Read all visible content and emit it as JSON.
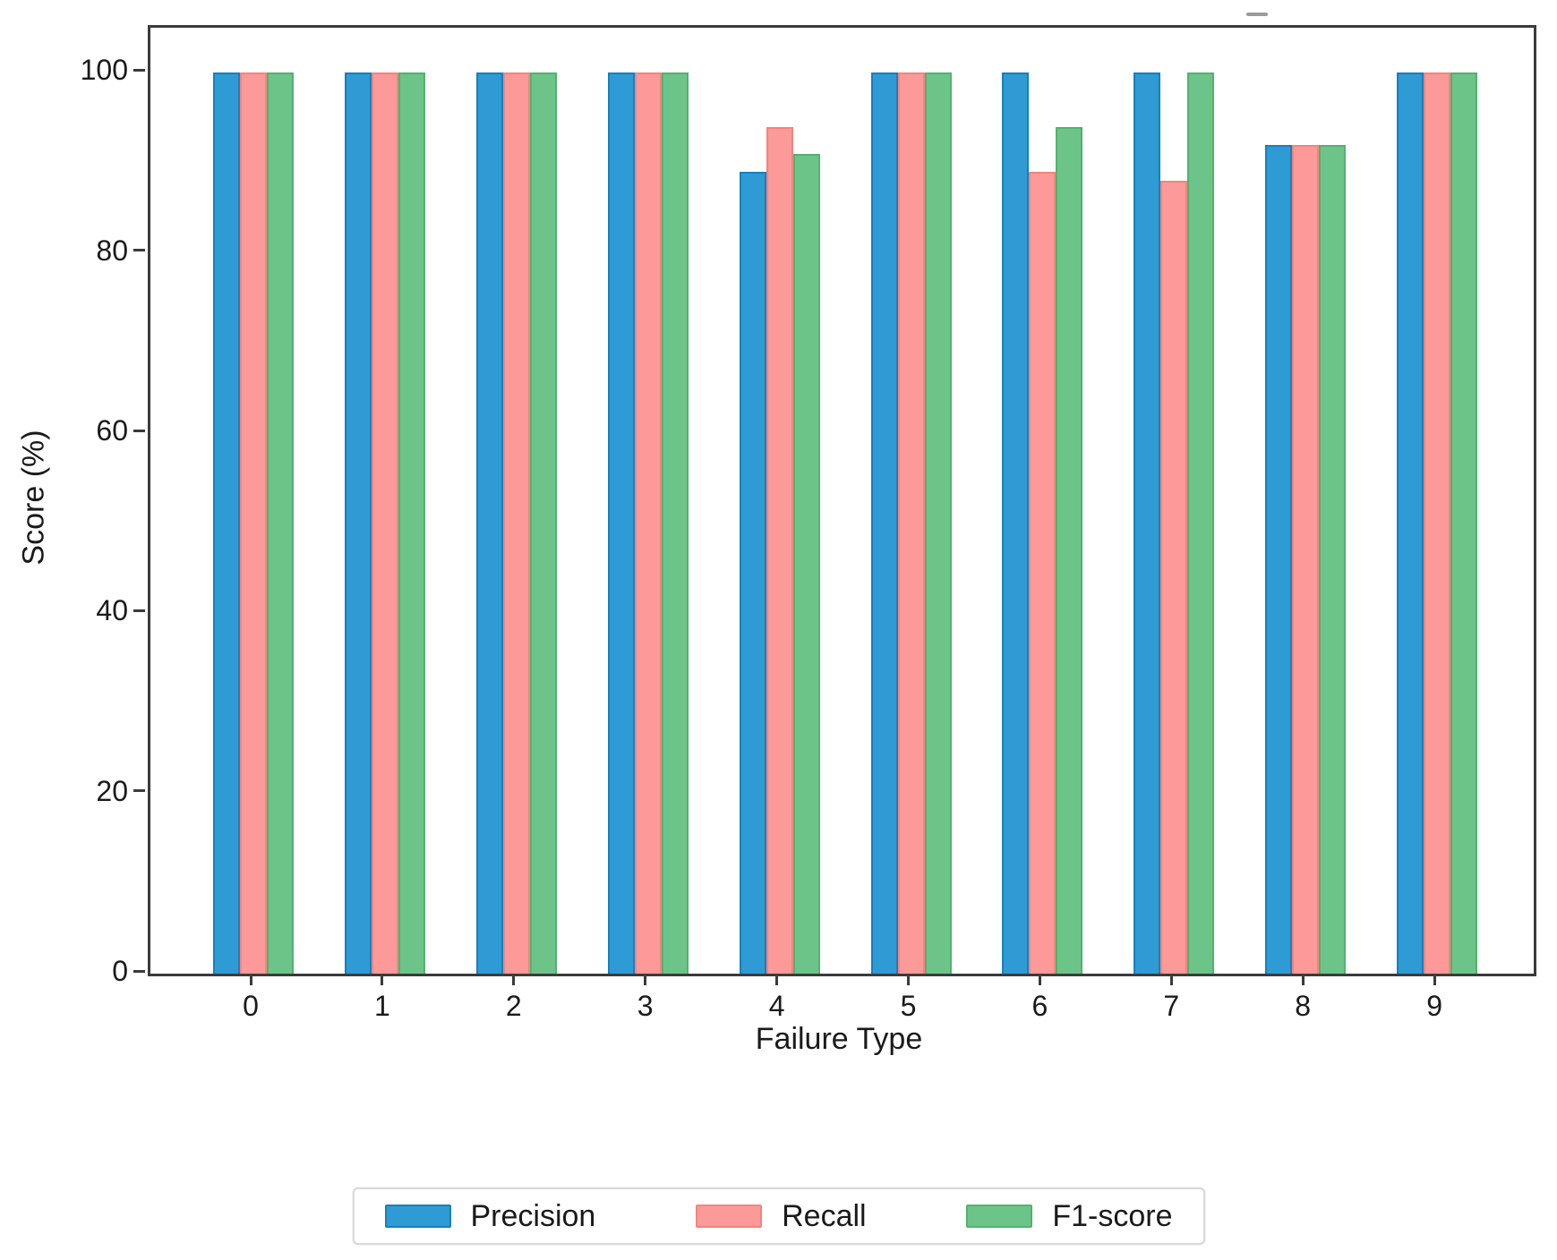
{
  "chart_data": {
    "type": "bar",
    "title": "",
    "xlabel": "Failure Type",
    "ylabel": "Score (%)",
    "categories": [
      "0",
      "1",
      "2",
      "3",
      "4",
      "5",
      "6",
      "7",
      "8",
      "9"
    ],
    "series": [
      {
        "name": "Precision",
        "color": "#2e9bd4",
        "edge_color": "#1780bd",
        "values": [
          100,
          100,
          100,
          100,
          89,
          100,
          100,
          100,
          92,
          100
        ]
      },
      {
        "name": "Recall",
        "color": "#fb9a98",
        "edge_color": "#f5837f",
        "values": [
          100,
          100,
          100,
          100,
          94,
          100,
          89,
          88,
          92,
          100
        ]
      },
      {
        "name": "F1-score",
        "color": "#6cc488",
        "edge_color": "#52b270",
        "values": [
          100,
          100,
          100,
          100,
          91,
          100,
          94,
          100,
          92,
          100
        ]
      }
    ],
    "yticks": [
      0,
      20,
      40,
      60,
      80,
      100
    ],
    "ylim": [
      0,
      105
    ],
    "grid": false,
    "legend_position": "bottom",
    "axis_color": "#3b3b3b"
  }
}
